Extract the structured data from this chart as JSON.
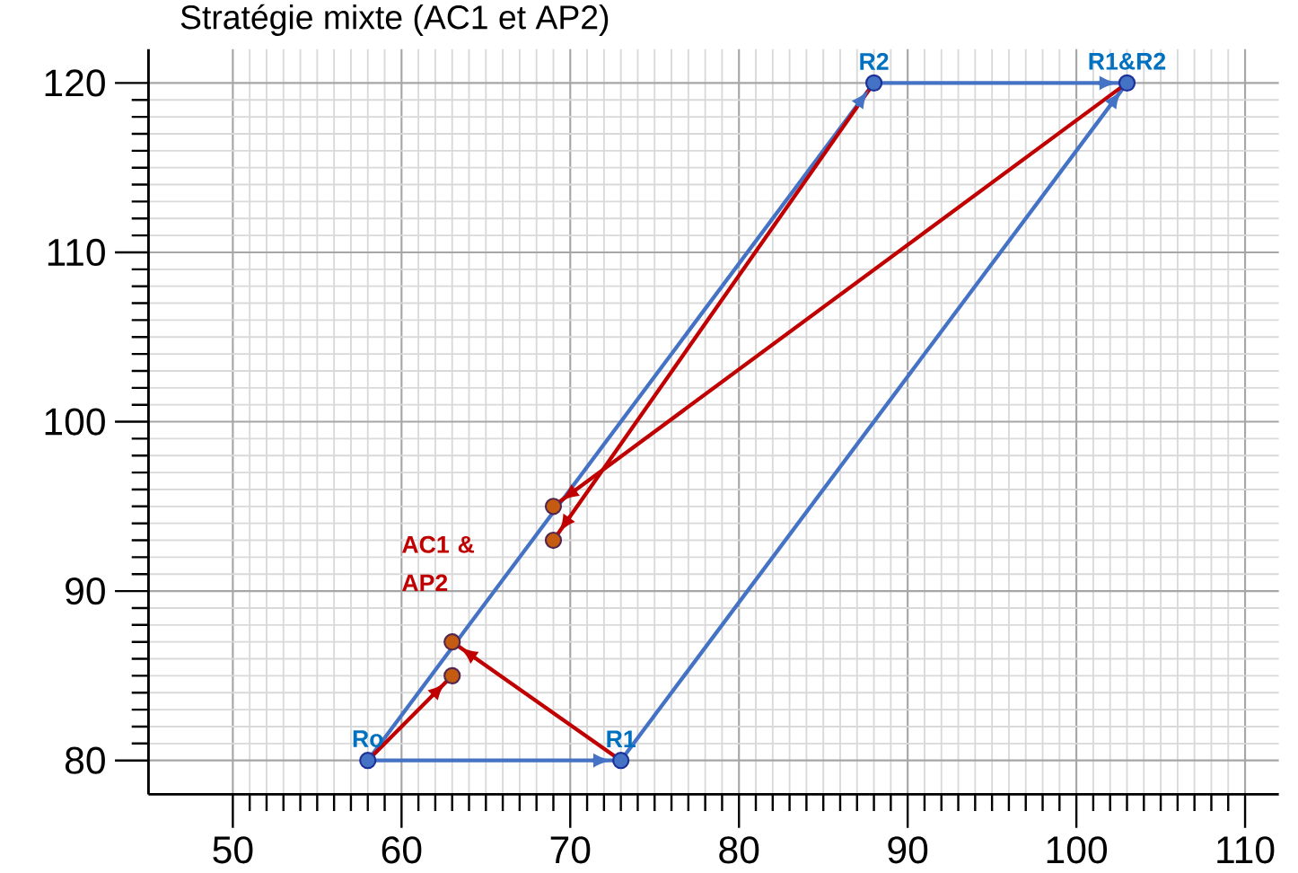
{
  "chart_data": {
    "type": "line",
    "title": "Stratégie mixte (AC1 et AP2)",
    "xlim": [
      45,
      112
    ],
    "ylim": [
      78,
      122
    ],
    "xticks": [
      50,
      60,
      70,
      80,
      90,
      100,
      110
    ],
    "yticks": [
      80,
      90,
      100,
      110,
      120
    ],
    "grid": true,
    "series": [
      {
        "color": "#4472c4",
        "x": [
          58,
          73
        ],
        "values": [
          80,
          80
        ]
      },
      {
        "color": "#4472c4",
        "x": [
          73,
          103
        ],
        "values": [
          80,
          120
        ]
      },
      {
        "color": "#4472c4",
        "x": [
          58,
          88
        ],
        "values": [
          80,
          120
        ]
      },
      {
        "color": "#4472c4",
        "x": [
          88,
          103
        ],
        "values": [
          120,
          120
        ]
      },
      {
        "color": "#c00000",
        "x": [
          58,
          63
        ],
        "values": [
          80,
          85
        ]
      },
      {
        "color": "#c00000",
        "x": [
          73,
          63
        ],
        "values": [
          80,
          87
        ]
      },
      {
        "color": "#c00000",
        "x": [
          103,
          69
        ],
        "values": [
          120,
          95
        ]
      },
      {
        "color": "#c00000",
        "x": [
          88,
          69
        ],
        "values": [
          120,
          93
        ]
      },
      {
        "type": "scatter",
        "color": "#4472c4",
        "x": [
          58,
          73,
          88,
          103
        ],
        "values": [
          80,
          80,
          120,
          120
        ]
      },
      {
        "type": "scatter",
        "color": "#c55a11",
        "x": [
          63,
          63,
          69,
          69
        ],
        "values": [
          87,
          85,
          95,
          93
        ]
      }
    ],
    "annotations": [
      {
        "text": "Ro",
        "x": 58,
        "y": 80
      },
      {
        "text": "R1",
        "x": 73,
        "y": 80
      },
      {
        "text": "R2",
        "x": 88,
        "y": 120
      },
      {
        "text": "R1&R2",
        "x": 103,
        "y": 120
      },
      "AC1 & AP2"
    ]
  }
}
